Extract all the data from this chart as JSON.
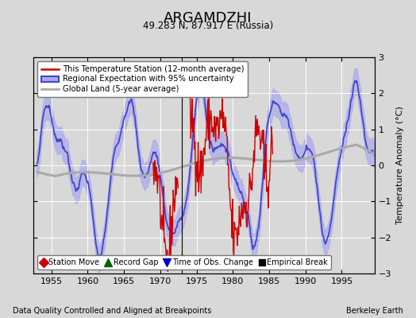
{
  "title": "ARGAMDZHI",
  "subtitle": "49.283 N, 87.917 E (Russia)",
  "xlabel_bottom": "Data Quality Controlled and Aligned at Breakpoints",
  "xlabel_right": "Berkeley Earth",
  "ylabel": "Temperature Anomaly (°C)",
  "xlim": [
    1952.5,
    1999.5
  ],
  "ylim": [
    -3,
    3
  ],
  "yticks": [
    -3,
    -2,
    -1,
    0,
    1,
    2,
    3
  ],
  "xticks": [
    1955,
    1960,
    1965,
    1970,
    1975,
    1980,
    1985,
    1990,
    1995
  ],
  "bg_color": "#d8d8d8",
  "plot_bg_color": "#d8d8d8",
  "grid_color": "white",
  "record_gap_x": 1973.0,
  "record_gap_y": -2.55,
  "vline_x": 1973.0,
  "regional_color": "#4444cc",
  "regional_band_color": "#aaaaee",
  "station_color": "#cc0000",
  "global_color": "#aaaaaa",
  "legend_items": [
    {
      "label": "This Temperature Station (12-month average)",
      "color": "#cc0000"
    },
    {
      "label": "Regional Expectation with 95% uncertainty",
      "color": "#4444cc"
    },
    {
      "label": "Global Land (5-year average)",
      "color": "#aaaaaa"
    }
  ],
  "marker_items": [
    {
      "label": "Station Move",
      "color": "#cc0000",
      "marker": "D"
    },
    {
      "label": "Record Gap",
      "color": "#006600",
      "marker": "^"
    },
    {
      "label": "Time of Obs. Change",
      "color": "#0000cc",
      "marker": "v"
    },
    {
      "label": "Empirical Break",
      "color": "#000000",
      "marker": "s"
    }
  ]
}
